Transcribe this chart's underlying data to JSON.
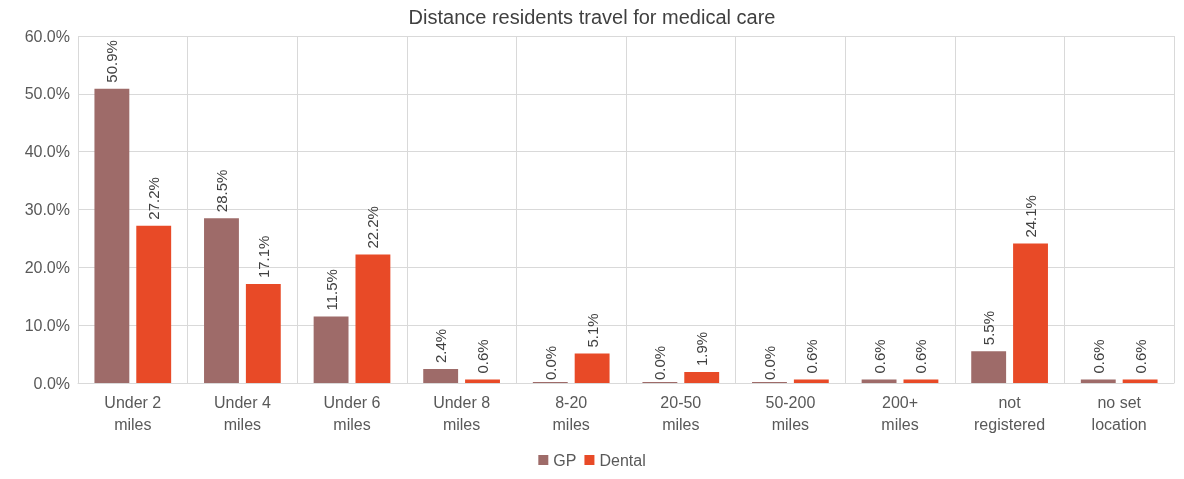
{
  "chart_data": {
    "type": "bar",
    "title": "Distance residents travel for medical care",
    "categories": [
      "Under 2\nmiles",
      "Under 4\nmiles",
      "Under 6\nmiles",
      "Under 8\nmiles",
      "8-20\nmiles",
      "20-50\nmiles",
      "50-200\nmiles",
      "200+\nmiles",
      "not\nregistered",
      "no set\nlocation"
    ],
    "series": [
      {
        "name": "GP",
        "color": "#9e6b69",
        "values": [
          50.9,
          28.5,
          11.5,
          2.4,
          0,
          0,
          0,
          0.6,
          5.5,
          0.6
        ],
        "value_labels": [
          "50.9%",
          "28.5%",
          "11.5%",
          "2.4%",
          "0.0%",
          "0.0%",
          "0.0%",
          "0.6%",
          "5.5%",
          "0.6%"
        ]
      },
      {
        "name": "Dental",
        "color": "#e84a27",
        "values": [
          27.2,
          17.1,
          22.2,
          0.6,
          5.1,
          1.9,
          0.6,
          0.6,
          24.1,
          0.6
        ],
        "value_labels": [
          "27.2%",
          "17.1%",
          "22.2%",
          "0.6%",
          "5.1%",
          "1.9%",
          "0.6%",
          "0.6%",
          "24.1%",
          "0.6%"
        ]
      }
    ],
    "ylim": [
      0,
      60
    ],
    "yticks": [
      {
        "value": 0,
        "label": "0.0%"
      },
      {
        "value": 10,
        "label": "10.0%"
      },
      {
        "value": 20,
        "label": "20.0%"
      },
      {
        "value": 30,
        "label": "30.0%"
      },
      {
        "value": 40,
        "label": "40.0%"
      },
      {
        "value": 50,
        "label": "50.0%"
      },
      {
        "value": 60,
        "label": "60.0%"
      }
    ],
    "grid": true,
    "legend": "bottom"
  }
}
